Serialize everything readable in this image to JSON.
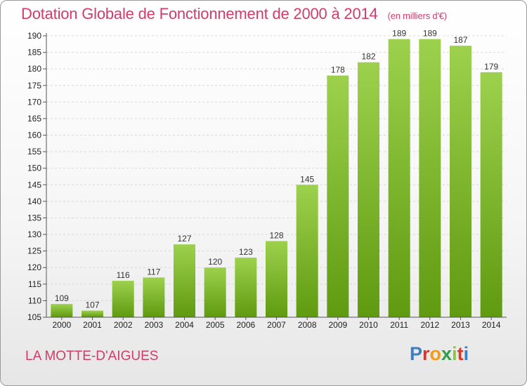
{
  "header": {
    "title": "Dotation Globale de Fonctionnement de 2000 à 2014",
    "unit": "(en milliers d'€)"
  },
  "footer": {
    "commune": "LA MOTTE-D'AIGUES",
    "logo": "Proxiti"
  },
  "colors": {
    "title": "#d13c6b",
    "bar_top": "#9dd14d",
    "bar_bottom": "#5f9a10"
  },
  "chart_data": {
    "type": "bar",
    "title": "Dotation Globale de Fonctionnement de 2000 à 2014",
    "subtitle": "(en milliers d'€)",
    "xlabel": "",
    "ylabel": "",
    "categories": [
      "2000",
      "2001",
      "2002",
      "2003",
      "2004",
      "2005",
      "2006",
      "2007",
      "2008",
      "2009",
      "2010",
      "2011",
      "2012",
      "2013",
      "2014"
    ],
    "values": [
      109,
      107,
      116,
      117,
      127,
      120,
      123,
      128,
      145,
      178,
      182,
      189,
      189,
      187,
      179
    ],
    "ylim": [
      105,
      190
    ],
    "yticks": [
      105,
      110,
      115,
      120,
      125,
      130,
      135,
      140,
      145,
      150,
      155,
      160,
      165,
      170,
      175,
      180,
      185,
      190
    ],
    "grid": true,
    "legend": "none"
  }
}
